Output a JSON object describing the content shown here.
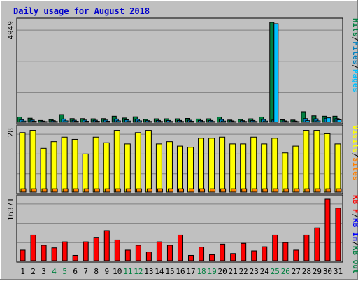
{
  "chart_data": {
    "type": "bar",
    "title": "Daily usage for August 2018",
    "categories": [
      "1",
      "2",
      "3",
      "4",
      "5",
      "6",
      "7",
      "8",
      "9",
      "10",
      "11",
      "12",
      "13",
      "14",
      "15",
      "16",
      "17",
      "18",
      "19",
      "20",
      "21",
      "22",
      "23",
      "24",
      "25",
      "26",
      "27",
      "28",
      "29",
      "30",
      "31"
    ],
    "weekend_days": [
      "4",
      "5",
      "11",
      "12",
      "18",
      "19",
      "25",
      "26"
    ],
    "colors": {
      "title": "#0000cc",
      "hits": "#008040",
      "files": "#0080c0",
      "pages": "#00c0ff",
      "visits": "#ffff00",
      "sites": "#ff8000",
      "kbin": "#0000ff",
      "kbout": "#008040",
      "kbf": "#ff0000",
      "weekday_label": "#000000",
      "weekend_label": "#008040",
      "panel": "#c0c0c0",
      "frame": "#c0c0c0"
    },
    "panels": [
      {
        "id": "hits_panel",
        "max_label": "4949",
        "ylim": [
          0,
          4949
        ],
        "legend": [
          {
            "text": "Hits",
            "color": "#008040"
          },
          {
            "text": "/",
            "color": "#000000"
          },
          {
            "text": "Files",
            "color": "#0080c0"
          },
          {
            "text": "/",
            "color": "#000000"
          },
          {
            "text": "Pages",
            "color": "#00c0ff"
          }
        ],
        "series": [
          {
            "name": "Hits",
            "color": "#008040",
            "values": [
              260,
              200,
              90,
              130,
              380,
              180,
              180,
              170,
              180,
              300,
              210,
              270,
              140,
              170,
              170,
              170,
              190,
              160,
              170,
              260,
              110,
              140,
              170,
              260,
              4949,
              120,
              110,
              520,
              320,
              300,
              300
            ]
          },
          {
            "name": "Files",
            "color": "#0080c0",
            "values": [
              130,
              110,
              60,
              80,
              160,
              100,
              110,
              100,
              110,
              160,
              120,
              150,
              80,
              90,
              90,
              90,
              100,
              90,
              90,
              140,
              70,
              80,
              90,
              140,
              110,
              70,
              60,
              180,
              170,
              200,
              180
            ]
          },
          {
            "name": "Pages",
            "color": "#00c0ff",
            "values": [
              60,
              50,
              30,
              40,
              70,
              50,
              50,
              50,
              50,
              70,
              60,
              70,
              40,
              40,
              40,
              40,
              50,
              40,
              40,
              60,
              30,
              40,
              40,
              60,
              4880,
              30,
              30,
              80,
              70,
              220,
              120
            ]
          }
        ]
      },
      {
        "id": "visits_panel",
        "max_label": "28",
        "ylim": [
          0,
          28
        ],
        "legend": [
          {
            "text": "Visits",
            "color": "#ffff00"
          },
          {
            "text": "/",
            "color": "#000000"
          },
          {
            "text": "Sites",
            "color": "#ff8000"
          }
        ],
        "series": [
          {
            "name": "Visits",
            "color": "#ffff00",
            "values": [
              26.5,
              27.5,
              19.5,
              22.5,
              24.5,
              23.5,
              17,
              24.5,
              22,
              27.5,
              21.5,
              26.5,
              27.5,
              21.5,
              22.5,
              20.5,
              20,
              24,
              24,
              24.5,
              21.5,
              21.5,
              24.5,
              21.5,
              24,
              17.5,
              20.5,
              27.5,
              27.5,
              26,
              21.5
            ]
          },
          {
            "name": "Sites",
            "color": "#ff8000",
            "values": [
              1.5,
              1.5,
              1.5,
              1.5,
              1.5,
              1.5,
              1.5,
              1.5,
              1.5,
              1.5,
              1.5,
              1.5,
              1.5,
              1.5,
              1.5,
              1.5,
              1.5,
              1.5,
              1.5,
              1.5,
              1.5,
              1.5,
              1.5,
              1.5,
              1.5,
              1.5,
              1.5,
              1.5,
              1.5,
              1.5,
              1.5
            ]
          }
        ]
      },
      {
        "id": "kbytes_panel",
        "max_label": "16371",
        "ylim": [
          0,
          16371
        ],
        "legend": [
          {
            "text": "KB F",
            "color": "#ff0000"
          },
          {
            "text": "/",
            "color": "#000000"
          },
          {
            "text": "KB In",
            "color": "#0000ff"
          },
          {
            "text": "/",
            "color": "#000000"
          },
          {
            "text": "KB Out",
            "color": "#008040"
          }
        ],
        "series": [
          {
            "name": "KB F",
            "color": "#ff0000",
            "values": [
              2800,
              6800,
              4100,
              3400,
              5000,
              1400,
              5000,
              6200,
              8000,
              5500,
              2800,
              4100,
              2300,
              5000,
              4100,
              6800,
              1400,
              3600,
              1600,
              4400,
              1900,
              4600,
              2600,
              3700,
              6800,
              4800,
              2800,
              6800,
              8700,
              16371,
              14000
            ]
          }
        ]
      }
    ]
  }
}
